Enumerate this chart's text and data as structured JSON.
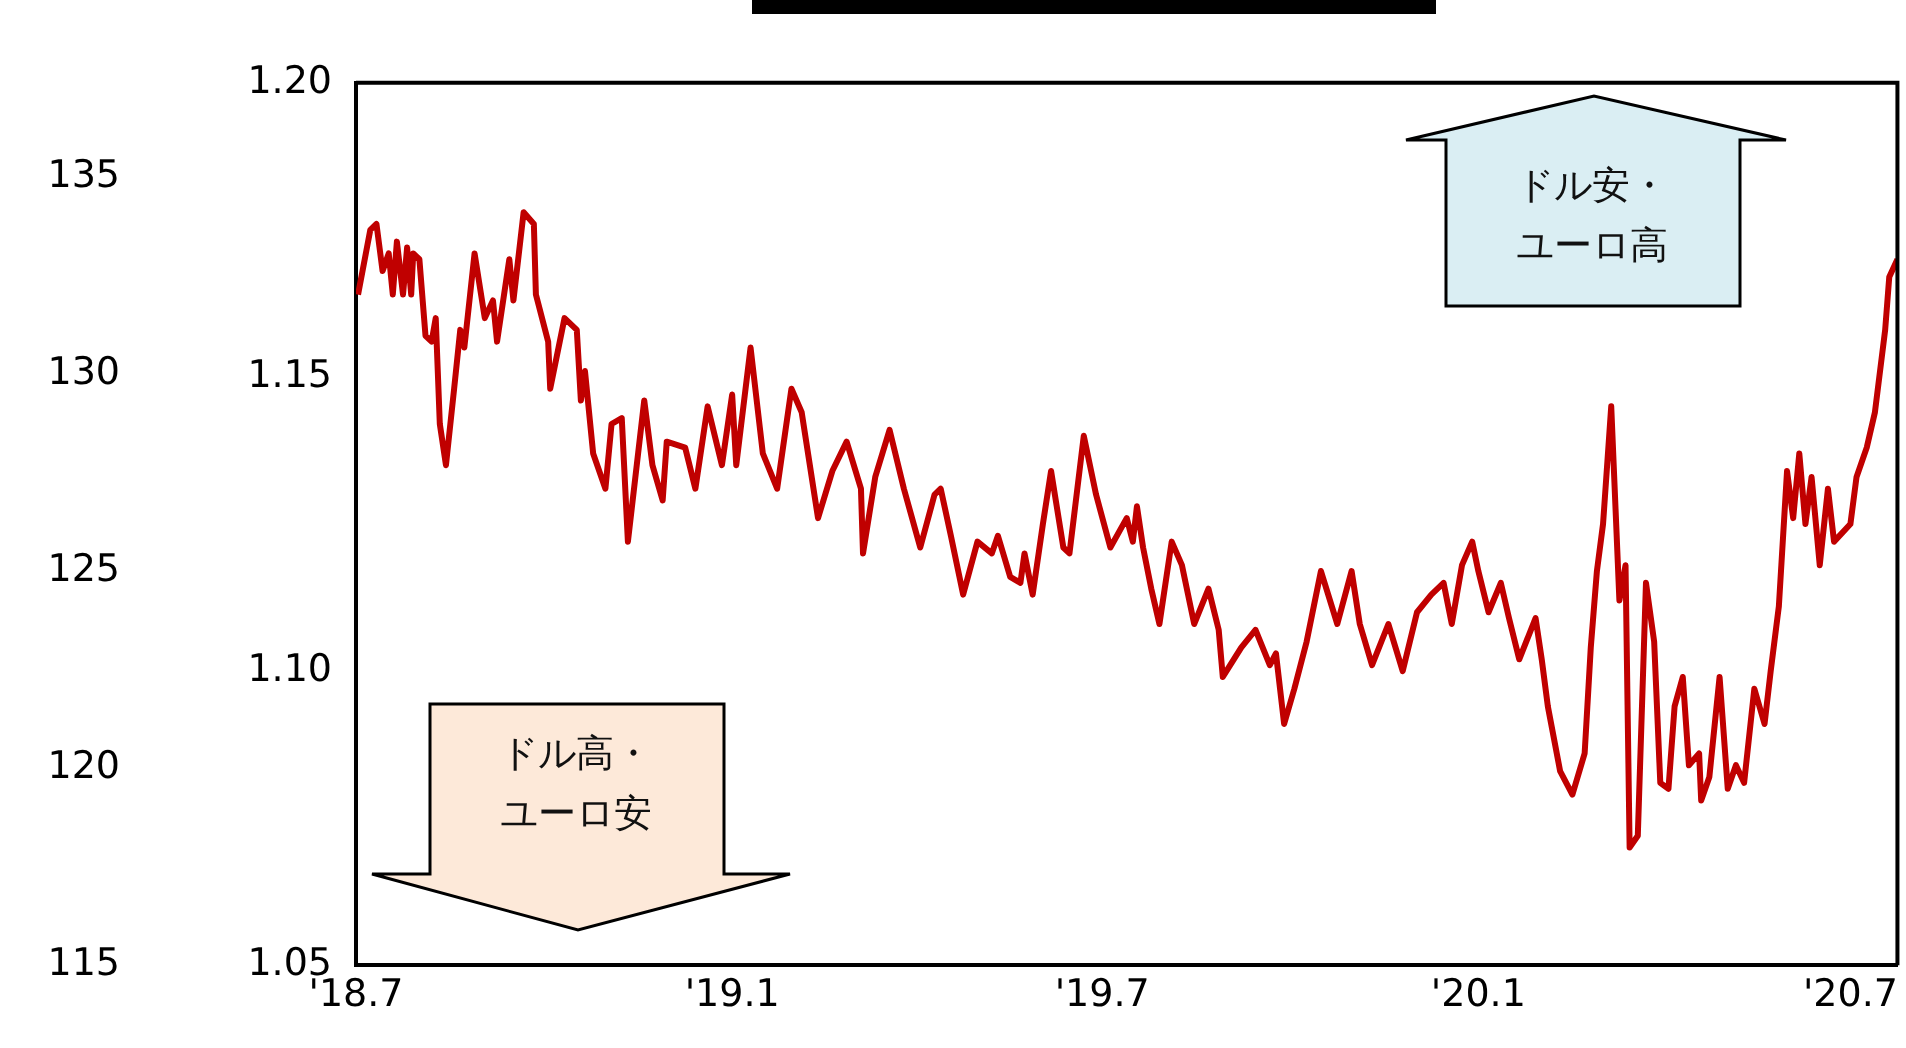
{
  "chart_data": {
    "type": "line",
    "series": [
      {
        "color": "#c00000",
        "x": [
          "2018-07-02",
          "2018-07-08",
          "2018-07-11",
          "2018-07-14",
          "2018-07-17",
          "2018-07-19",
          "2018-07-21",
          "2018-07-24",
          "2018-07-26",
          "2018-07-28",
          "2018-07-29",
          "2018-08-01",
          "2018-08-04",
          "2018-08-07",
          "2018-08-09",
          "2018-08-11",
          "2018-08-14",
          "2018-08-18",
          "2018-08-21",
          "2018-08-23",
          "2018-08-28",
          "2018-09-02",
          "2018-09-06",
          "2018-09-08",
          "2018-09-14",
          "2018-09-16",
          "2018-09-21",
          "2018-09-26",
          "2018-09-27",
          "2018-10-03",
          "2018-10-04",
          "2018-10-11",
          "2018-10-17",
          "2018-10-19",
          "2018-10-21",
          "2018-10-25",
          "2018-10-31",
          "2018-11-03",
          "2018-11-08",
          "2018-11-11",
          "2018-11-19",
          "2018-11-23",
          "2018-11-28",
          "2018-11-30",
          "2018-12-09",
          "2018-12-14",
          "2018-12-20",
          "2018-12-27",
          "2019-01-01",
          "2019-01-03",
          "2019-01-10",
          "2019-01-16",
          "2019-01-23",
          "2019-01-30",
          "2019-02-04",
          "2019-02-12",
          "2019-02-19",
          "2019-02-26",
          "2019-03-05",
          "2019-03-06",
          "2019-03-12",
          "2019-03-19",
          "2019-03-26",
          "2019-04-03",
          "2019-04-10",
          "2019-04-13",
          "2019-04-18",
          "2019-04-24",
          "2019-05-01",
          "2019-05-08",
          "2019-05-11",
          "2019-05-17",
          "2019-05-22",
          "2019-05-24",
          "2019-05-28",
          "2019-06-02",
          "2019-06-06",
          "2019-06-12",
          "2019-06-15",
          "2019-06-22",
          "2019-06-28",
          "2019-07-05",
          "2019-07-13",
          "2019-07-16",
          "2019-07-18",
          "2019-07-21",
          "2019-07-25",
          "2019-07-29",
          "2019-08-04",
          "2019-08-09",
          "2019-08-15",
          "2019-08-22",
          "2019-08-27",
          "2019-08-29",
          "2019-09-07",
          "2019-09-14",
          "2019-09-21",
          "2019-09-24",
          "2019-09-28",
          "2019-10-03",
          "2019-10-09",
          "2019-10-16",
          "2019-10-24",
          "2019-10-31",
          "2019-11-04",
          "2019-11-10",
          "2019-11-18",
          "2019-11-25",
          "2019-12-02",
          "2019-12-09",
          "2019-12-15",
          "2019-12-19",
          "2019-12-24",
          "2019-12-29",
          "2020-01-01",
          "2020-01-06",
          "2020-01-12",
          "2020-01-16",
          "2020-01-21",
          "2020-01-29",
          "2020-02-01",
          "2020-02-04",
          "2020-02-10",
          "2020-02-16",
          "2020-02-22",
          "2020-02-25",
          "2020-02-28",
          "2020-03-02",
          "2020-03-06",
          "2020-03-10",
          "2020-03-13",
          "2020-03-15",
          "2020-03-19",
          "2020-03-23",
          "2020-03-27",
          "2020-03-30",
          "2020-04-03",
          "2020-04-06",
          "2020-04-10",
          "2020-04-13",
          "2020-04-18",
          "2020-04-19",
          "2020-04-23",
          "2020-04-28",
          "2020-05-02",
          "2020-05-06",
          "2020-05-10",
          "2020-05-15",
          "2020-05-20",
          "2020-05-23",
          "2020-05-27",
          "2020-05-31",
          "2020-06-03",
          "2020-06-06",
          "2020-06-09",
          "2020-06-12",
          "2020-06-16",
          "2020-06-20",
          "2020-06-23",
          "2020-07-01",
          "2020-07-04",
          "2020-07-09",
          "2020-07-13",
          "2020-07-18",
          "2020-07-20",
          "2020-07-24"
        ],
        "values": [
          1.164,
          1.175,
          1.176,
          1.168,
          1.171,
          1.164,
          1.173,
          1.164,
          1.172,
          1.164,
          1.171,
          1.17,
          1.157,
          1.156,
          1.16,
          1.142,
          1.135,
          1.148,
          1.158,
          1.155,
          1.171,
          1.16,
          1.163,
          1.156,
          1.17,
          1.163,
          1.178,
          1.176,
          1.164,
          1.156,
          1.148,
          1.16,
          1.158,
          1.146,
          1.151,
          1.137,
          1.131,
          1.142,
          1.143,
          1.122,
          1.146,
          1.135,
          1.129,
          1.139,
          1.138,
          1.131,
          1.145,
          1.135,
          1.147,
          1.135,
          1.155,
          1.137,
          1.131,
          1.148,
          1.144,
          1.126,
          1.134,
          1.139,
          1.131,
          1.12,
          1.133,
          1.141,
          1.131,
          1.121,
          1.13,
          1.131,
          1.123,
          1.113,
          1.122,
          1.12,
          1.123,
          1.116,
          1.115,
          1.12,
          1.113,
          1.125,
          1.134,
          1.121,
          1.12,
          1.14,
          1.13,
          1.121,
          1.126,
          1.122,
          1.128,
          1.121,
          1.114,
          1.108,
          1.122,
          1.118,
          1.108,
          1.114,
          1.107,
          1.099,
          1.104,
          1.107,
          1.101,
          1.103,
          1.091,
          1.097,
          1.105,
          1.117,
          1.108,
          1.117,
          1.108,
          1.101,
          1.108,
          1.1,
          1.11,
          1.113,
          1.115,
          1.108,
          1.118,
          1.122,
          1.117,
          1.11,
          1.115,
          1.109,
          1.102,
          1.109,
          1.102,
          1.094,
          1.083,
          1.079,
          1.086,
          1.104,
          1.117,
          1.125,
          1.145,
          1.112,
          1.118,
          1.07,
          1.072,
          1.115,
          1.105,
          1.081,
          1.08,
          1.094,
          1.099,
          1.084,
          1.086,
          1.078,
          1.082,
          1.099,
          1.08,
          1.084,
          1.081,
          1.097,
          1.091,
          1.1,
          1.111,
          1.134,
          1.126,
          1.137,
          1.125,
          1.133,
          1.118,
          1.131,
          1.122,
          1.125,
          1.133,
          1.138,
          1.144,
          1.158,
          1.167,
          1.17
        ]
      }
    ],
    "xlim": [
      "2018-07-01",
      "2020-07-24"
    ],
    "xticks": [
      {
        "value": "2018-07",
        "label": "'18.7"
      },
      {
        "value": "2019-01",
        "label": "'19.1"
      },
      {
        "value": "2019-07",
        "label": "'19.7"
      },
      {
        "value": "2020-01",
        "label": "'20.1"
      },
      {
        "value": "2020-07",
        "label": "'20.7"
      }
    ],
    "ylim": [
      1.05,
      1.2
    ],
    "yticks": [
      {
        "value": 1.05,
        "label": "1.05"
      },
      {
        "value": 1.1,
        "label": "1.10"
      },
      {
        "value": 1.15,
        "label": "1.15"
      },
      {
        "value": 1.2,
        "label": "1.20"
      }
    ],
    "y2lim": [
      115,
      137.4
    ],
    "y2ticks": [
      115,
      120,
      125,
      130,
      135
    ],
    "grid": false,
    "legend": false,
    "marker": "none",
    "line_style": "solid",
    "annotations": [
      "ドル安・ユーロ高",
      "ドル高・ユーロ安"
    ]
  }
}
